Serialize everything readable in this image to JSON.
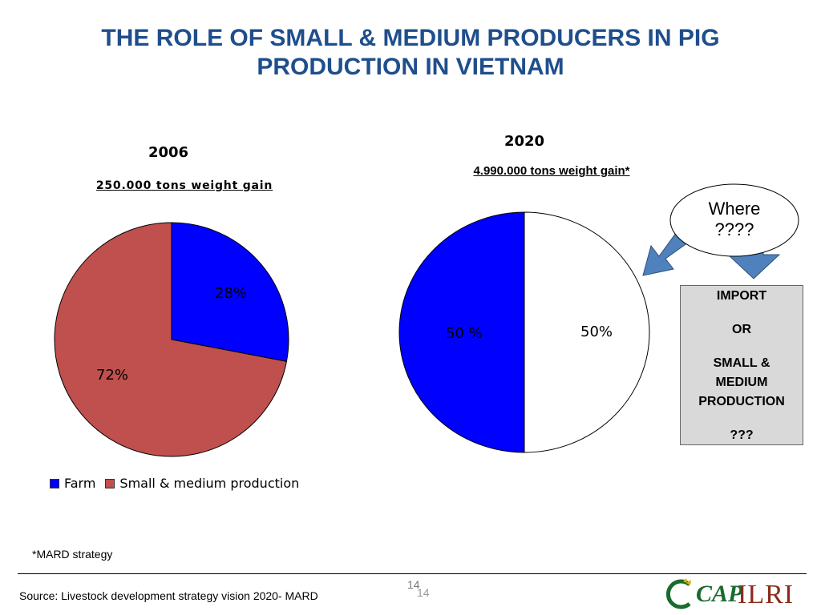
{
  "title": {
    "line1": "THE ROLE OF SMALL & MEDIUM PRODUCERS IN PIG",
    "line2": "PRODUCTION IN VIETNAM"
  },
  "chart_data": [
    {
      "type": "pie",
      "title": "2006",
      "subtitle": "250.000 tons  weight gain",
      "categories": [
        "Farm",
        "Small & medium production"
      ],
      "values": [
        28,
        72
      ],
      "data_labels": [
        "28%",
        "72%"
      ],
      "colors": [
        "#0000ff",
        "#c0504d"
      ],
      "legend": "bottom",
      "legend_labels": [
        "Farm",
        "Small & medium production"
      ]
    },
    {
      "type": "pie",
      "title": "2020",
      "subtitle": "4.990.000 tons weight gain*",
      "values": [
        50,
        50
      ],
      "data_labels": [
        "50 %",
        "50%"
      ],
      "colors": [
        "#0000ff",
        "#ffffff"
      ]
    }
  ],
  "callout": {
    "text_line1": "Where",
    "text_line2": "????"
  },
  "box": {
    "line1": "IMPORT",
    "line2": "OR",
    "line3": "SMALL &",
    "line4": "MEDIUM",
    "line5": "PRODUCTION",
    "line6": "???"
  },
  "footnote": "*MARD strategy",
  "source": "Source: Livestock development strategy vision 2020- MARD",
  "page_number": "14",
  "page_number_ghost": "14",
  "logos": {
    "cap": "CAP",
    "ilri": "ILRI"
  },
  "colors": {
    "title": "#1f4e8c",
    "arrow": "#4f81bd"
  }
}
